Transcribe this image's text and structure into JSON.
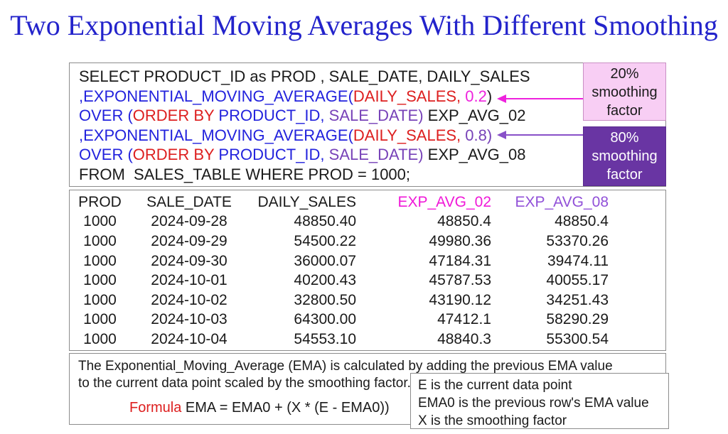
{
  "title": "Two Exponential Moving Averages With Different Smoothing",
  "colors": {
    "titleblue": "#2323CB",
    "blue": "#2222DD",
    "red": "#DD1F1F",
    "purple": "#7742B8",
    "magenta": "#EE22DD",
    "arrowpurple": "#8850C8",
    "exp02_header": "#F018D8",
    "exp08_header": "#9150D8",
    "pink_box_bg": "#F8CEF4",
    "purple_box_bg": "#6935A3"
  },
  "sql_box": {
    "lines": [
      [
        {
          "t": "SELECT PRODUCT_ID as PROD , SALE_DATE, DAILY_SALES",
          "c": "black"
        }
      ],
      [
        {
          "t": ",EXPONENTIAL_MOVING_AVERAGE(",
          "c": "blue"
        },
        {
          "t": "DAILY_SALES,",
          "c": "red"
        },
        {
          "t": " 0.2",
          "c": "magenta"
        },
        {
          "t": ")",
          "c": "black"
        }
      ],
      [
        {
          "t": "OVER (",
          "c": "blue"
        },
        {
          "t": "ORDER BY ",
          "c": "red"
        },
        {
          "t": "PRODUCT_ID, ",
          "c": "blue"
        },
        {
          "t": "SALE_DATE)",
          "c": "purple"
        },
        {
          "t": " EXP_AVG_02",
          "c": "black"
        }
      ],
      [
        {
          "t": ",EXPONENTIAL_MOVING_AVERAGE(",
          "c": "blue"
        },
        {
          "t": "DAILY_SALES,",
          "c": "red"
        },
        {
          "t": " 0.8",
          "c": "purple"
        },
        {
          "t": ")",
          "c": "purple"
        }
      ],
      [
        {
          "t": "OVER (",
          "c": "blue"
        },
        {
          "t": "ORDER BY ",
          "c": "red"
        },
        {
          "t": "PRODUCT_ID, ",
          "c": "blue"
        },
        {
          "t": "SALE_DATE)",
          "c": "purple"
        },
        {
          "t": " EXP_AVG_08",
          "c": "black"
        }
      ],
      [
        {
          "t": "FROM  SALES_TABLE WHERE PROD = 1000;",
          "c": "black"
        }
      ]
    ]
  },
  "annotations": {
    "smoothing_20": {
      "label": "20% smoothing factor",
      "bg": "#F8CEF4",
      "text_color": "#1A1A1A"
    },
    "smoothing_80": {
      "label": "80% smoothing factor",
      "bg": "#6935A3",
      "text_color": "#FFFFFF"
    }
  },
  "table": {
    "columns": [
      {
        "label": "PROD",
        "color": "#1A1A1A",
        "align": "center"
      },
      {
        "label": "SALE_DATE",
        "color": "#1A1A1A",
        "align": "center"
      },
      {
        "label": "DAILY_SALES",
        "color": "#1A1A1A",
        "align": "right"
      },
      {
        "label": "EXP_AVG_02",
        "color": "#F018D8",
        "align": "right"
      },
      {
        "label": "EXP_AVG_08",
        "color": "#9150D8",
        "align": "right"
      }
    ],
    "rows": [
      [
        "1000",
        "2024-09-28",
        "48850.40",
        "48850.4",
        "48850.4"
      ],
      [
        "1000",
        "2024-09-29",
        "54500.22",
        "49980.36",
        "53370.26"
      ],
      [
        "1000",
        "2024-09-30",
        "36000.07",
        "47184.31",
        "39474.11"
      ],
      [
        "1000",
        "2024-10-01",
        "40200.43",
        "45787.53",
        "40055.17"
      ],
      [
        "1000",
        "2024-10-02",
        "32800.50",
        "43190.12",
        "34251.43"
      ],
      [
        "1000",
        "2024-10-03",
        "64300.00",
        "47412.1",
        "58290.29"
      ],
      [
        "1000",
        "2024-10-04",
        "54553.10",
        "48840.3",
        "55300.54"
      ]
    ]
  },
  "explanation": {
    "line1": "The Exponential_Moving_Average (EMA) is calculated by adding the previous EMA value",
    "line2": "to the current data point scaled by the smoothing factor.",
    "formula_label": "Formula",
    "formula": "EMA = EMA0 + (X * (E - EMA0))"
  },
  "legend": {
    "lines": [
      "E is the current data point",
      "EMA0 is the previous row's EMA value",
      "X is the smoothing factor"
    ]
  }
}
